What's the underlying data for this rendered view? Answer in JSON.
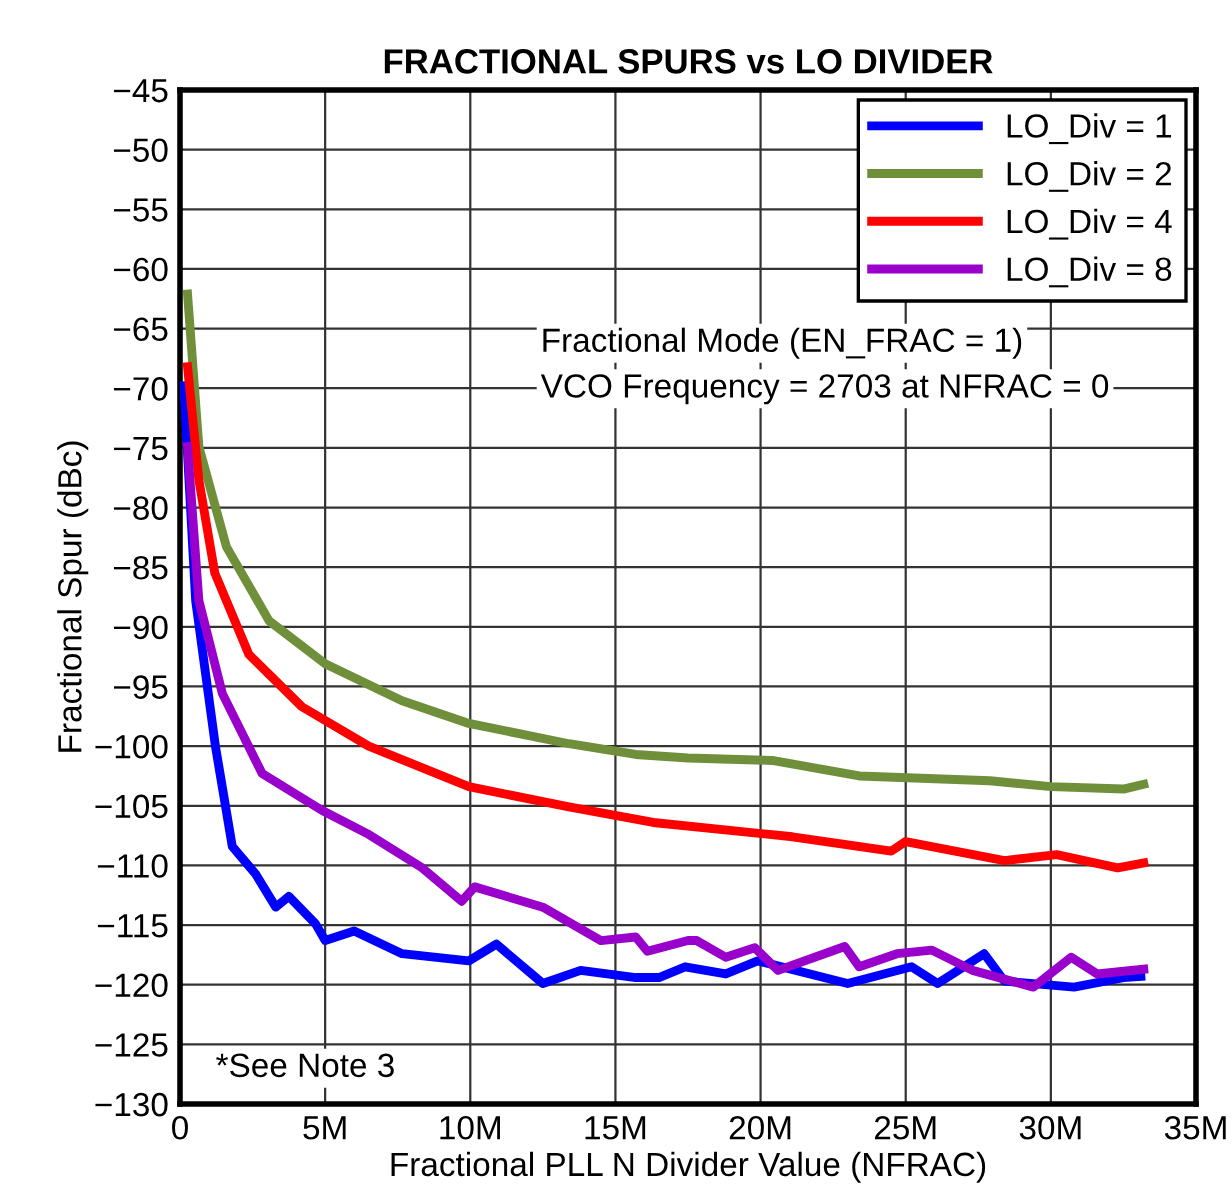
{
  "chart_data": {
    "type": "line",
    "title": "FRACTIONAL SPURS vs LO DIVIDER",
    "xlabel": "Fractional PLL N Divider Value (NFRAC)",
    "ylabel": "Fractional Spur (dBc)",
    "series": [
      {
        "name": "LO_Div = 1",
        "color": "#0000ff",
        "x": [
          130000,
          540000,
          1220000,
          1800000,
          2600000,
          3300000,
          3750000,
          4670000,
          5000000,
          6000000,
          7650000,
          9950000,
          10900000,
          12500000,
          13800000,
          15700000,
          16500000,
          17400000,
          18800000,
          19900000,
          23000000,
          25200000,
          26100000,
          27700000,
          28400000,
          30800000,
          32500000,
          33100000
        ],
        "values": [
          -69.8,
          -87.8,
          -100,
          -108.4,
          -110.7,
          -113.5,
          -112.6,
          -114.9,
          -116.3,
          -115.5,
          -117.4,
          -118,
          -116.6,
          -119.9,
          -118.8,
          -119.4,
          -119.4,
          -118.5,
          -119.1,
          -118,
          -119.9,
          -118.5,
          -119.9,
          -117.4,
          -119.7,
          -120.2,
          -119.4,
          -119.3
        ]
      },
      {
        "name": "LO_Div = 2",
        "color": "#6f8f3a",
        "x": [
          260000,
          650000,
          1600000,
          3070000,
          5000000,
          7650000,
          9950000,
          13400000,
          15700000,
          17500000,
          20400000,
          23400000,
          27900000,
          30000000,
          32500000,
          33200000
        ],
        "values": [
          -62.1,
          -74.9,
          -83.3,
          -89.5,
          -93.1,
          -96.2,
          -98.1,
          -99.8,
          -100.7,
          -101.0,
          -101.2,
          -102.5,
          -102.9,
          -103.4,
          -103.6,
          -103.2
        ]
      },
      {
        "name": "LO_Div = 4",
        "color": "#ff0000",
        "x": [
          260000,
          650000,
          1200000,
          2370000,
          4200000,
          6500000,
          9950000,
          13400000,
          16300000,
          21100000,
          24500000,
          25000000,
          28400000,
          30200000,
          32300000,
          33200000
        ],
        "values": [
          -68.2,
          -77.7,
          -85.5,
          -92.3,
          -96.7,
          -100,
          -103.4,
          -105.1,
          -106.4,
          -107.6,
          -108.8,
          -108.0,
          -109.6,
          -109.1,
          -110.2,
          -109.8
        ]
      },
      {
        "name": "LO_Div = 8",
        "color": "#9900cc",
        "x": [
          260000,
          650000,
          1460000,
          2830000,
          4900000,
          6500000,
          8340000,
          9700000,
          10150000,
          12500000,
          14500000,
          15700000,
          16100000,
          17500000,
          17800000,
          18800000,
          19800000,
          20600000,
          22900000,
          23400000,
          24700000,
          25900000,
          27300000,
          29400000,
          30700000,
          31600000,
          33200000
        ],
        "values": [
          -74.9,
          -87.8,
          -95.6,
          -102.3,
          -105.4,
          -107.4,
          -110.2,
          -113,
          -111.8,
          -113.5,
          -116.3,
          -116,
          -117.2,
          -116.3,
          -116.3,
          -117.7,
          -116.9,
          -118.8,
          -116.8,
          -118.5,
          -117.4,
          -117.1,
          -118.8,
          -120.2,
          -117.7,
          -119.1,
          -118.7
        ]
      }
    ],
    "xlim": [
      0,
      35000000
    ],
    "xticks": [
      0,
      {
        "value": 5000000,
        "label": "5M"
      },
      {
        "value": 10000000,
        "label": "10M"
      },
      {
        "value": 15000000,
        "label": "15M"
      },
      {
        "value": 20000000,
        "label": "20M"
      },
      {
        "value": 25000000,
        "label": "25M"
      },
      {
        "value": 30000000,
        "label": "30M"
      },
      {
        "value": 35000000,
        "label": "35M"
      }
    ],
    "ylim": [
      -130,
      -45
    ],
    "yticks": [
      -130,
      -125,
      -120,
      -115,
      -110,
      -105,
      -100,
      -95,
      -90,
      -85,
      -80,
      -75,
      -70,
      -65,
      -60,
      -55,
      -50,
      -45
    ],
    "grid": true,
    "legend": "top right",
    "line_style": "solid",
    "marker": "none",
    "annotations": [
      {
        "text": "Fractional Mode (EN_FRAC = 1)"
      },
      {
        "text": "VCO Frequency = 2703 at NFRAC = 0"
      },
      {
        "text": "*See Note 3"
      }
    ]
  }
}
